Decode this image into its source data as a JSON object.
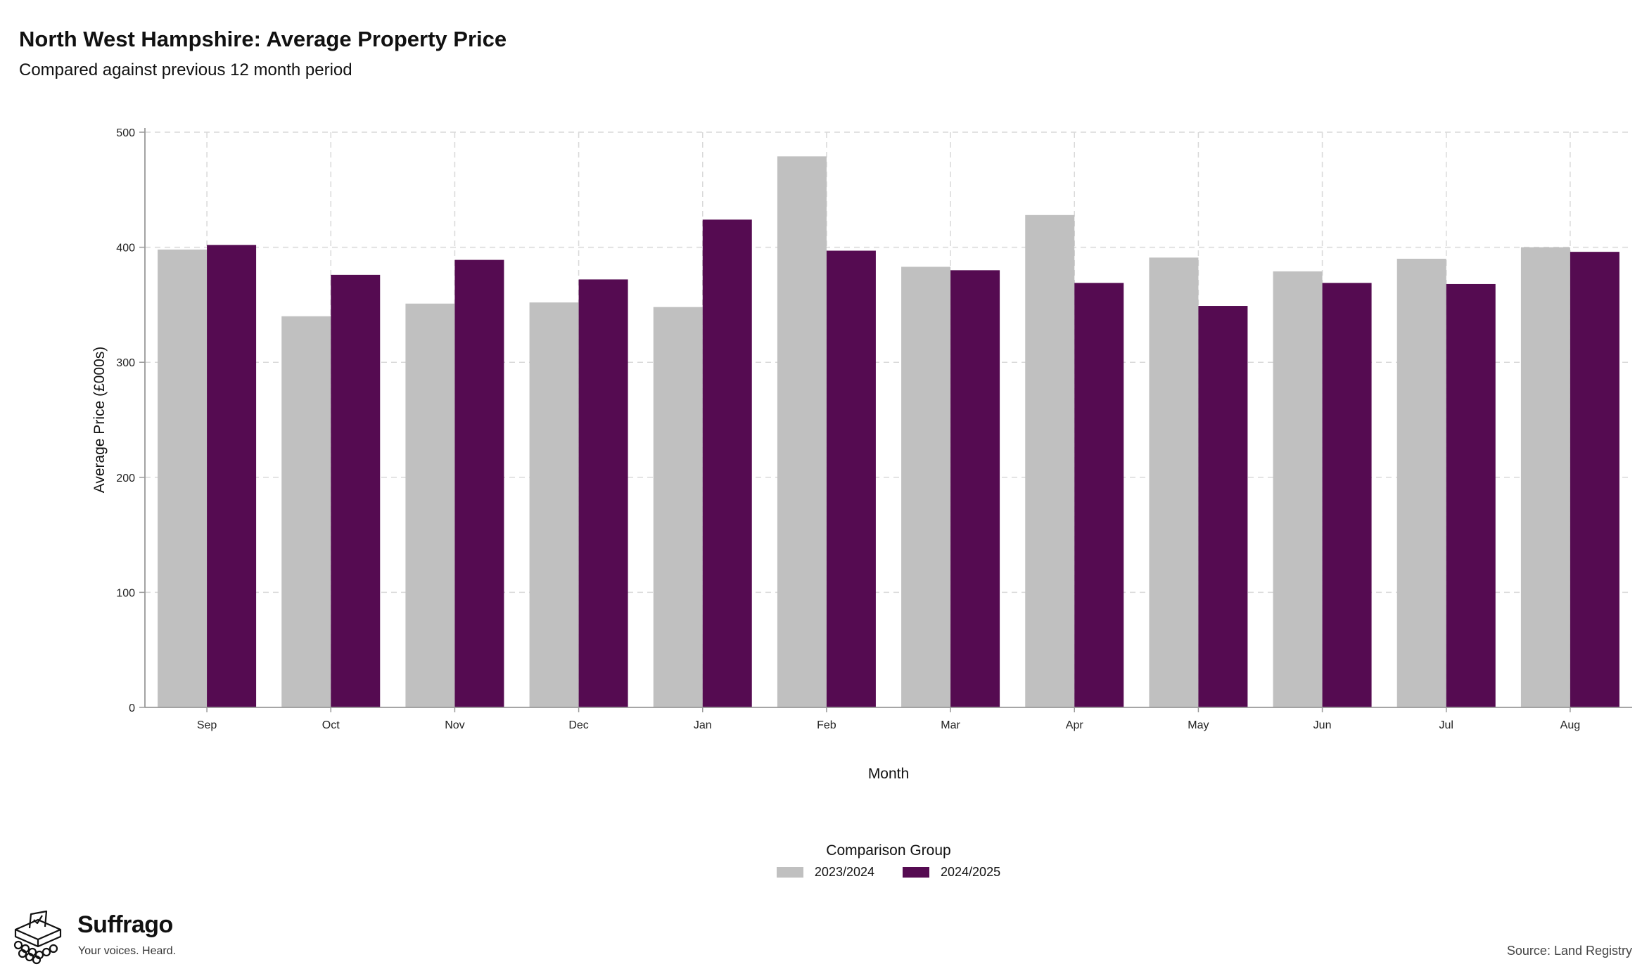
{
  "chart_data": {
    "type": "bar",
    "title": "North West Hampshire: Average Property Price",
    "subtitle": "Compared against previous 12 month period",
    "xlabel": "Month",
    "ylabel": "Average Price (£000s)",
    "ylim": [
      0,
      500
    ],
    "yticks": [
      0,
      100,
      200,
      300,
      400,
      500
    ],
    "grid": true,
    "legend_title": "Comparison Group",
    "legend_position": "bottom",
    "categories": [
      "Sep",
      "Oct",
      "Nov",
      "Dec",
      "Jan",
      "Feb",
      "Mar",
      "Apr",
      "May",
      "Jun",
      "Jul",
      "Aug"
    ],
    "series": [
      {
        "name": "2023/2024",
        "color": "#c0c0c0",
        "values": [
          398,
          340,
          351,
          352,
          348,
          479,
          383,
          428,
          391,
          379,
          390,
          400
        ]
      },
      {
        "name": "2024/2025",
        "color": "#550b51",
        "values": [
          402,
          376,
          389,
          372,
          424,
          397,
          380,
          369,
          349,
          369,
          368,
          396
        ]
      }
    ]
  },
  "branding": {
    "name": "Suffrago",
    "tagline": "Your voices. Heard.",
    "logo_icon": "ballot-box-icon"
  },
  "source": "Source: Land Registry"
}
